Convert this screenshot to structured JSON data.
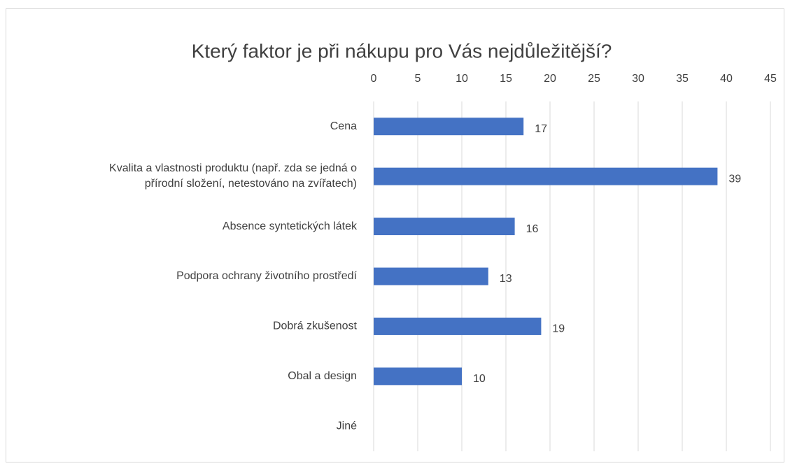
{
  "chart_data": {
    "type": "bar",
    "orientation": "horizontal",
    "title": "Který faktor je při nákupu pro Vás nejdůležitější?",
    "categories": [
      "Cena",
      "Kvalita a vlastnosti produktu (např. zda se jedná o\npřírodní složení, netestováno na zvířatech)",
      "Absence syntetických látek",
      "Podpora ochrany životního prostředí",
      "Dobrá zkušenost",
      "Obal a design",
      "Jiné"
    ],
    "values": [
      17,
      39,
      16,
      13,
      19,
      10,
      null
    ],
    "color": "#4472c4",
    "xlim": [
      0,
      45
    ],
    "xticks": [
      0,
      5,
      10,
      15,
      20,
      25,
      30,
      35,
      40,
      45
    ],
    "grid": true
  }
}
